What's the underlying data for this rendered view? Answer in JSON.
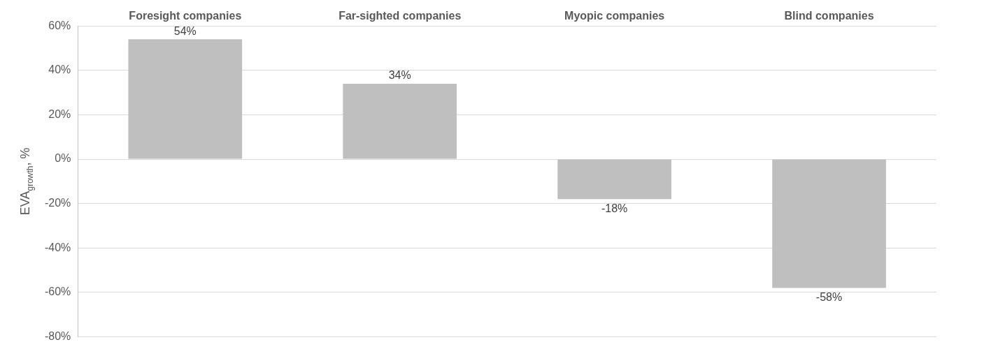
{
  "chart_data": {
    "type": "bar",
    "categories": [
      "Foresight companies",
      "Far-sighted companies",
      "Myopic companies",
      "Blind companies"
    ],
    "values": [
      54,
      34,
      -18,
      -58
    ],
    "value_labels": [
      "54%",
      "34%",
      "-18%",
      "-58%"
    ],
    "color": "#bfbfbf",
    "ylabel": "EVA$_{growth}$, %",
    "ylim": [
      -80,
      60
    ],
    "yticks": [
      {
        "value": 60,
        "label": "60%"
      },
      {
        "value": 40,
        "label": "40%"
      },
      {
        "value": 20,
        "label": "20%"
      },
      {
        "value": 0,
        "label": "0%"
      },
      {
        "value": -20,
        "label": "-20%"
      },
      {
        "value": -40,
        "label": "-40%"
      },
      {
        "value": -60,
        "label": "-60%"
      },
      {
        "value": -80,
        "label": "-80%"
      }
    ],
    "grid": "y",
    "legend": false
  }
}
